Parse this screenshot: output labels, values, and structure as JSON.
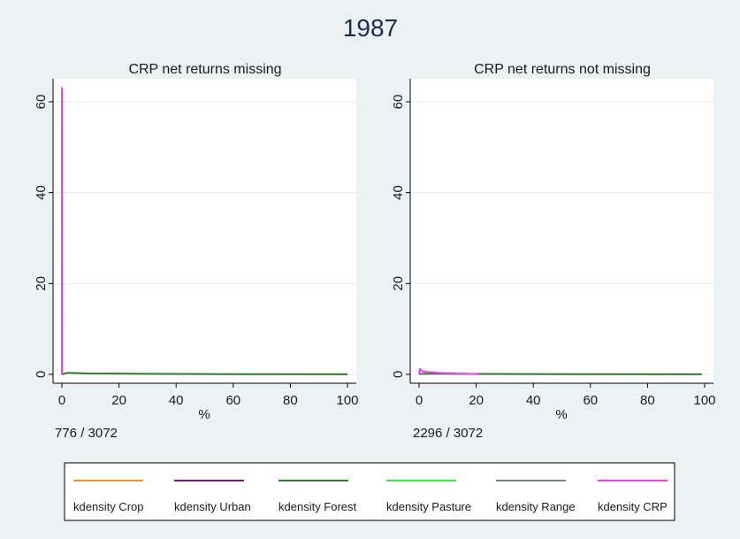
{
  "chart_data": {
    "type": "line",
    "title": "1987",
    "legend": {
      "placement": "bottom",
      "entries": [
        {
          "label": "kdensity Crop",
          "color": "#f0922e"
        },
        {
          "label": "kdensity Urban",
          "color": "#7b1780"
        },
        {
          "label": "kdensity Forest",
          "color": "#2a7f24"
        },
        {
          "label": "kdensity Pasture",
          "color": "#38ee38"
        },
        {
          "label": "kdensity Range",
          "color": "#6f887c"
        },
        {
          "label": "kdensity CRP",
          "color": "#ea3ef0"
        }
      ]
    },
    "panels": [
      {
        "title": "CRP net returns missing",
        "xlabel": "%",
        "ylabel": "",
        "xlim": [
          0,
          100
        ],
        "ylim": [
          0,
          65
        ],
        "xticks": [
          "0",
          "20",
          "40",
          "60",
          "80",
          "100"
        ],
        "yticks": [
          "0",
          "20",
          "40",
          "60"
        ],
        "grid": true,
        "note": "776 / 3072",
        "series": [
          {
            "name": "kdensity Forest",
            "color": "#2a7f24",
            "x": [
              0,
              2,
              10,
              30,
              60,
              100
            ],
            "y": [
              0.0,
              0.35,
              0.2,
              0.12,
              0.05,
              0.02
            ]
          },
          {
            "name": "kdensity CRP",
            "color": "#ea3ef0",
            "x": [
              0,
              0.02,
              0.04,
              0.06,
              0.08,
              0.1
            ],
            "y": [
              0.0,
              63,
              63,
              14,
              1,
              0.0
            ]
          }
        ]
      },
      {
        "title": "CRP net returns not missing",
        "xlabel": "%",
        "ylabel": "",
        "xlim": [
          0,
          100
        ],
        "ylim": [
          0,
          65
        ],
        "xticks": [
          "0",
          "20",
          "40",
          "60",
          "80",
          "100"
        ],
        "yticks": [
          "0",
          "20",
          "40",
          "60"
        ],
        "grid": true,
        "note": "2296 / 3072",
        "series": [
          {
            "name": "kdensity Forest",
            "color": "#2a7f24",
            "x": [
              0,
              5,
              20,
              50,
              99
            ],
            "y": [
              0.1,
              0.15,
              0.1,
              0.05,
              0.02
            ]
          },
          {
            "name": "kdensity CRP",
            "color": "#ea3ef0",
            "x": [
              0,
              0.3,
              1,
              3,
              8,
              15,
              21
            ],
            "y": [
              0.0,
              1.2,
              0.7,
              0.5,
              0.3,
              0.15,
              0.05
            ]
          }
        ]
      }
    ]
  }
}
